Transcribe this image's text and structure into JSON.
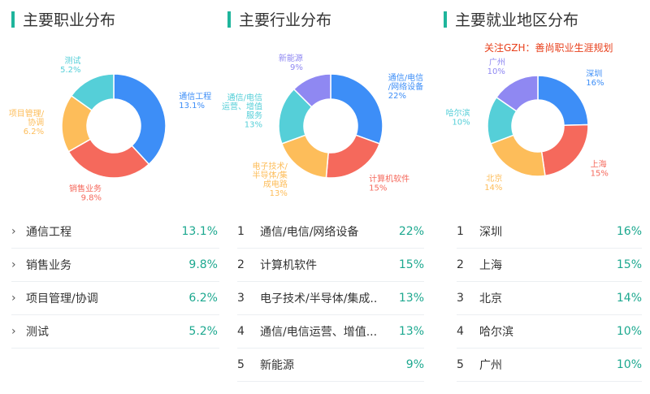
{
  "colors": {
    "accent": "#1fb59c",
    "pct_text": "#1ca88f",
    "notice": "#e8401c"
  },
  "panels": [
    {
      "title": "主要职业分布",
      "list_style": "arrow",
      "list": [
        {
          "name": "通信工程",
          "pct": "13.1%"
        },
        {
          "name": "销售业务",
          "pct": "9.8%"
        },
        {
          "name": "项目管理/协调",
          "pct": "6.2%"
        },
        {
          "name": "测试",
          "pct": "5.2%"
        }
      ]
    },
    {
      "title": "主要行业分布",
      "list_style": "rank",
      "list": [
        {
          "rank": "1",
          "name": "通信/电信/网络设备",
          "pct": "22%"
        },
        {
          "rank": "2",
          "name": "计算机软件",
          "pct": "15%"
        },
        {
          "rank": "3",
          "name": "电子技术/半导体/集成...",
          "pct": "13%"
        },
        {
          "rank": "4",
          "name": "通信/电信运营、增值...",
          "pct": "13%"
        },
        {
          "rank": "5",
          "name": "新能源",
          "pct": "9%"
        }
      ]
    },
    {
      "title": "主要就业地区分布",
      "notice": "关注GZH：善尚职业生涯规划",
      "list_style": "rank",
      "list": [
        {
          "rank": "1",
          "name": "深圳",
          "pct": "16%"
        },
        {
          "rank": "2",
          "name": "上海",
          "pct": "15%"
        },
        {
          "rank": "3",
          "name": "北京",
          "pct": "14%"
        },
        {
          "rank": "4",
          "name": "哈尔滨",
          "pct": "10%"
        },
        {
          "rank": "5",
          "name": "广州",
          "pct": "10%"
        }
      ]
    }
  ],
  "chart_data": [
    {
      "type": "pie",
      "title": "主要职业分布",
      "series": [
        {
          "name": "通信工程",
          "label": [
            "通信工程",
            "13.1%"
          ],
          "value": 13.1,
          "color": "#3d8ef7"
        },
        {
          "name": "销售业务",
          "label": [
            "销售业务",
            "9.8%"
          ],
          "value": 9.8,
          "color": "#f5695c"
        },
        {
          "name": "项目管理/协调",
          "label": [
            "项目管理/",
            "协调",
            "6.2%"
          ],
          "value": 6.2,
          "color": "#fdbd5a"
        },
        {
          "name": "测试",
          "label": [
            "测试",
            "5.2%"
          ],
          "value": 5.2,
          "color": "#55cfd8"
        }
      ]
    },
    {
      "type": "pie",
      "title": "主要行业分布",
      "series": [
        {
          "name": "通信/电信/网络设备",
          "label": [
            "通信/电信",
            "/网络设备",
            "22%"
          ],
          "value": 22,
          "color": "#3d8ef7"
        },
        {
          "name": "计算机软件",
          "label": [
            "计算机软件",
            "15%"
          ],
          "value": 15,
          "color": "#f5695c"
        },
        {
          "name": "电子技术/半导体/集成电路",
          "label": [
            "电子技术/",
            "半导体/集",
            "成电路",
            "13%"
          ],
          "value": 13,
          "color": "#fdbd5a"
        },
        {
          "name": "通信/电信运营、增值服务",
          "label": [
            "通信/电信",
            "运营、增值",
            "服务",
            "13%"
          ],
          "value": 13,
          "color": "#55cfd8"
        },
        {
          "name": "新能源",
          "label": [
            "新能源",
            "9%"
          ],
          "value": 9,
          "color": "#8f88f2"
        }
      ]
    },
    {
      "type": "pie",
      "title": "主要就业地区分布",
      "series": [
        {
          "name": "深圳",
          "label": [
            "深圳",
            "16%"
          ],
          "value": 16,
          "color": "#3d8ef7"
        },
        {
          "name": "上海",
          "label": [
            "上海",
            "15%"
          ],
          "value": 15,
          "color": "#f5695c"
        },
        {
          "name": "北京",
          "label": [
            "北京",
            "14%"
          ],
          "value": 14,
          "color": "#fdbd5a"
        },
        {
          "name": "哈尔滨",
          "label": [
            "哈尔滨",
            "10%"
          ],
          "value": 10,
          "color": "#55cfd8"
        },
        {
          "name": "广州",
          "label": [
            "广州",
            "10%"
          ],
          "value": 10,
          "color": "#8f88f2"
        }
      ]
    }
  ]
}
